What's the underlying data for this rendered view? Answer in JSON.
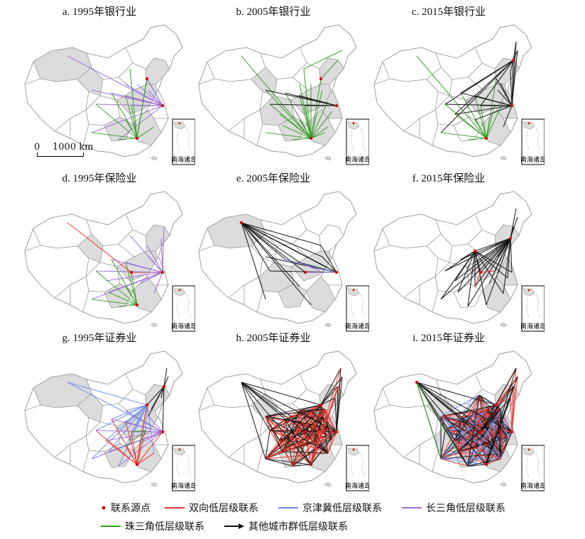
{
  "colors": {
    "bidirectional": "#e8372a",
    "beijing_tianjin_hebei": "#6f8fe6",
    "yangtze_delta": "#9b6ad6",
    "pearl_delta": "#3a9a2a",
    "other_clusters": "#111111",
    "origin": "#cc1111",
    "highlight_province": "#dcdcdc",
    "boundary": "#9a9a9a"
  },
  "panels": [
    {
      "title": "a. 1995年银行业",
      "inset_label": "南海诸岛"
    },
    {
      "title": "b. 2005年银行业",
      "inset_label": "南海诸岛"
    },
    {
      "title": "c. 2015年银行业",
      "inset_label": "南海诸岛"
    },
    {
      "title": "d. 1995年保险业",
      "inset_label": "南海诸岛"
    },
    {
      "title": "e. 2005年保险业",
      "inset_label": "南海诸岛"
    },
    {
      "title": "f. 2015年保险业",
      "inset_label": "南海诸岛"
    },
    {
      "title": "g. 1995年证券业",
      "inset_label": "南海诸岛"
    },
    {
      "title": "h. 2005年证券业",
      "inset_label": "南海诸岛"
    },
    {
      "title": "i. 2015年证券业",
      "inset_label": "南海诸岛"
    }
  ],
  "scale_bar": {
    "zero": "0",
    "label": "1000 km"
  },
  "legend": {
    "origin": "联系源点",
    "bidirectional": "双向低层级联系",
    "beijing_tianjin_hebei": "京津冀低层级联系",
    "yangtze_delta": "长三角低层级联系",
    "pearl_delta": "珠三角低层级联系",
    "other_clusters": "其他城市群低层级联系"
  }
}
